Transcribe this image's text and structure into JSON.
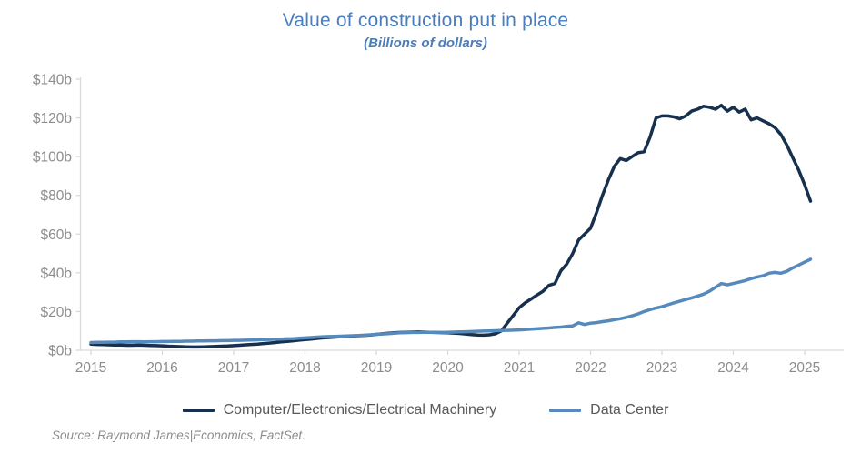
{
  "header": {
    "title": "Value of construction put in place",
    "subtitle": "(Billions of dollars)"
  },
  "footer": {
    "source": "Source: Raymond James|Economics, FactSet."
  },
  "colors": {
    "title_blue": "#4a7ebb",
    "machinery_line": "#16304e",
    "data_center_line": "#568abd",
    "axis": "#d9d9d9",
    "tick_label": "#8c8c8c",
    "legend_text": "#595959",
    "background": "#ffffff"
  },
  "chart_data": {
    "type": "line",
    "title": "Value of construction put in place",
    "subtitle": "(Billions of dollars)",
    "x_unit": "monthly",
    "x_start": "2015-01",
    "x_end": "2025-02",
    "ylim": [
      0,
      140
    ],
    "grid": false,
    "legend_position": "bottom",
    "x_tick_labels": [
      "2015",
      "2016",
      "2017",
      "2018",
      "2019",
      "2020",
      "2021",
      "2022",
      "2023",
      "2024",
      "2025"
    ],
    "y_tick_values": [
      0,
      20,
      40,
      60,
      80,
      100,
      120,
      140
    ],
    "y_tick_labels": [
      "$0b",
      "$20b",
      "$40b",
      "$60b",
      "$80b",
      "$100b",
      "$120b",
      "$140b"
    ],
    "series": [
      {
        "name": "Computer/Electronics/Electrical Machinery",
        "color": "#16304e",
        "values": [
          3.2,
          3.0,
          2.9,
          2.8,
          2.7,
          2.7,
          2.6,
          2.6,
          2.7,
          2.6,
          2.5,
          2.4,
          2.3,
          2.1,
          2.0,
          1.9,
          1.8,
          1.7,
          1.7,
          1.8,
          1.9,
          2.0,
          2.1,
          2.2,
          2.4,
          2.6,
          2.8,
          3.0,
          3.2,
          3.5,
          3.7,
          4.0,
          4.3,
          4.6,
          4.9,
          5.2,
          5.5,
          5.8,
          6.1,
          6.4,
          6.6,
          6.8,
          7.0,
          7.2,
          7.4,
          7.5,
          7.7,
          7.9,
          8.2,
          8.5,
          8.8,
          9.0,
          9.2,
          9.3,
          9.4,
          9.5,
          9.4,
          9.3,
          9.2,
          9.1,
          9.0,
          8.9,
          8.7,
          8.4,
          8.1,
          7.9,
          7.8,
          8.0,
          8.5,
          10.0,
          14.0,
          18.0,
          22.0,
          24.5,
          26.5,
          28.5,
          30.5,
          33.5,
          34.5,
          41.0,
          44.5,
          50.0,
          57.0,
          60.0,
          63.0,
          71.0,
          80.0,
          88.0,
          95.0,
          99.0,
          98.0,
          100.0,
          102.0,
          102.5,
          110.0,
          120.0,
          121.0,
          121.0,
          120.5,
          119.5,
          121.0,
          123.5,
          124.5,
          126.0,
          125.5,
          124.5,
          126.5,
          123.5,
          125.5,
          123.0,
          124.5,
          119.0,
          120.0,
          118.5,
          117.0,
          115.0,
          111.5,
          106.0,
          99.5,
          93.0,
          85.5,
          77.0
        ]
      },
      {
        "name": "Data Center",
        "color": "#568abd",
        "values": [
          4.0,
          4.1,
          4.1,
          4.2,
          4.2,
          4.3,
          4.3,
          4.4,
          4.4,
          4.3,
          4.4,
          4.4,
          4.5,
          4.5,
          4.6,
          4.6,
          4.7,
          4.7,
          4.8,
          4.8,
          4.9,
          4.9,
          5.0,
          5.0,
          5.1,
          5.1,
          5.2,
          5.3,
          5.4,
          5.5,
          5.6,
          5.7,
          5.8,
          5.9,
          6.0,
          6.2,
          6.4,
          6.6,
          6.8,
          7.0,
          7.1,
          7.2,
          7.3,
          7.4,
          7.5,
          7.6,
          7.8,
          8.0,
          8.2,
          8.4,
          8.6,
          8.8,
          9.0,
          9.1,
          9.2,
          9.2,
          9.3,
          9.3,
          9.2,
          9.2,
          9.3,
          9.4,
          9.5,
          9.6,
          9.7,
          9.8,
          9.9,
          10.0,
          10.1,
          10.2,
          10.3,
          10.4,
          10.5,
          10.7,
          10.9,
          11.1,
          11.3,
          11.5,
          11.8,
          12.0,
          12.3,
          12.6,
          14.2,
          13.3,
          14.0,
          14.3,
          14.8,
          15.2,
          15.8,
          16.3,
          17.0,
          17.8,
          18.8,
          20.0,
          21.0,
          21.8,
          22.5,
          23.5,
          24.5,
          25.3,
          26.2,
          27.0,
          28.0,
          29.0,
          30.5,
          32.5,
          34.5,
          33.8,
          34.5,
          35.2,
          36.0,
          37.0,
          37.8,
          38.5,
          39.8,
          40.2,
          39.8,
          40.8,
          42.5,
          44.0,
          45.5,
          47.0
        ]
      }
    ]
  }
}
